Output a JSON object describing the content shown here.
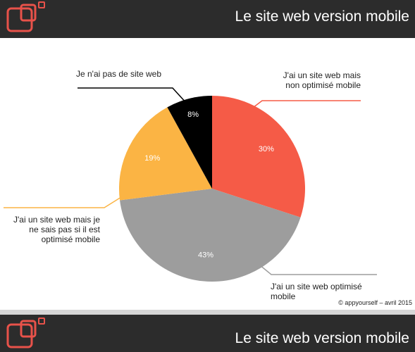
{
  "header": {
    "title": "Le site web version mobile"
  },
  "footer": {
    "credit": "© appyourself – avril 2015"
  },
  "chart_data": {
    "type": "pie",
    "categories": [
      "J'ai un site web mais non optimisé mobile",
      "J'ai un site web optimisé mobile",
      "J'ai un site web mais je ne sais pas si il est optimisé mobile",
      "Je n'ai pas de site web"
    ],
    "values": [
      30,
      43,
      19,
      8
    ],
    "value_labels": [
      "30%",
      "43%",
      "19%",
      "8%"
    ],
    "colors": [
      "#f55b47",
      "#9d9d9d",
      "#fbb444",
      "#000000"
    ]
  }
}
